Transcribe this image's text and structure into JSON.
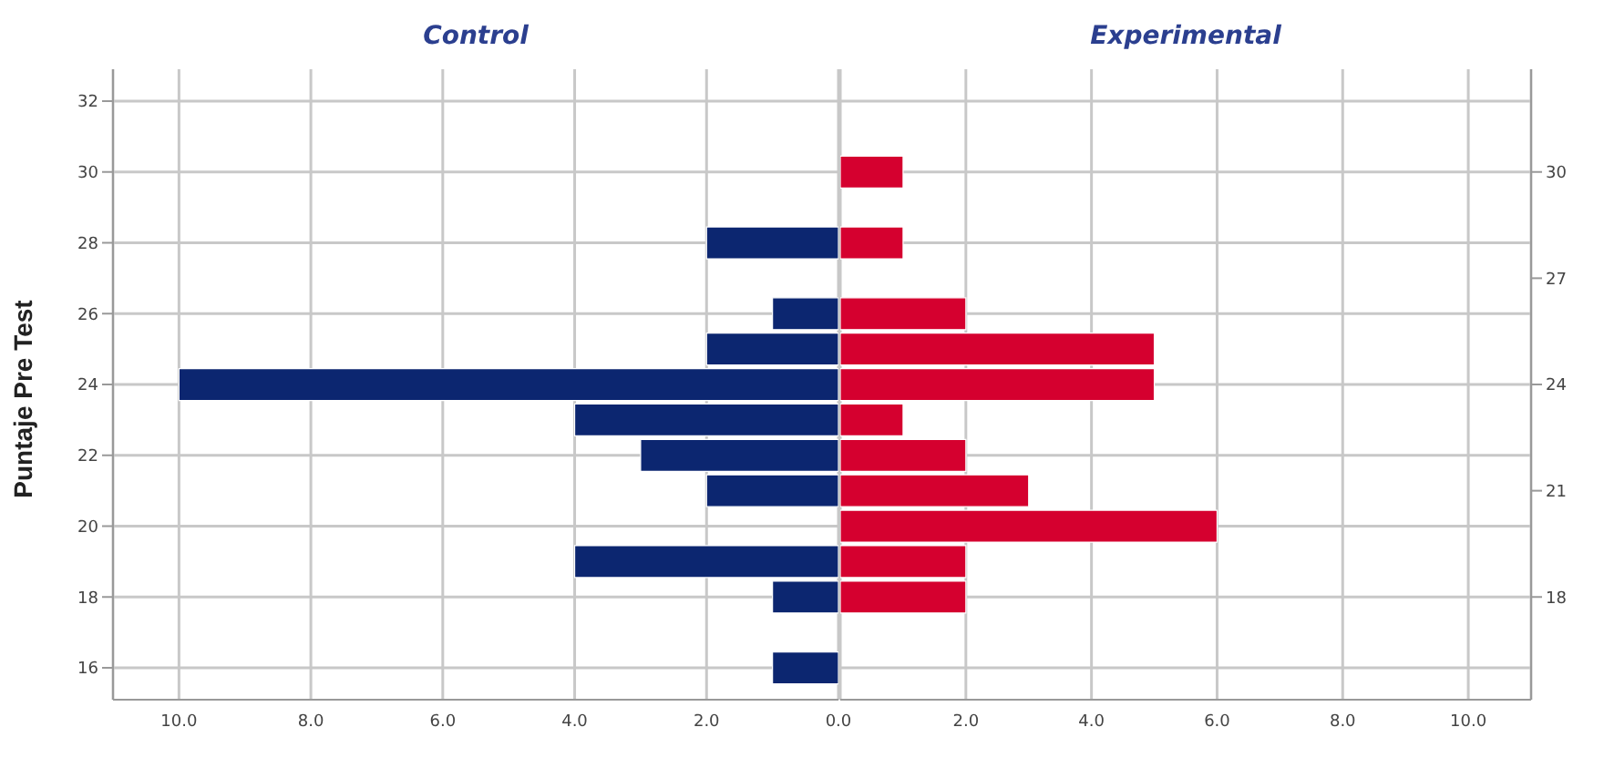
{
  "chart_data": [
    {
      "type": "histogram",
      "title": "Control",
      "ylabel": "Puntaje Pre Test",
      "orientation": "horizontal",
      "bins": [
        15.5,
        16.5,
        17.5,
        18.5,
        19.5,
        20.5,
        21.5,
        22.5,
        23.5,
        24.5,
        25.5,
        26.5,
        27.5,
        28.5
      ],
      "values": [
        1,
        0,
        1,
        4,
        0,
        2,
        3,
        4,
        10,
        2,
        1,
        0,
        2
      ],
      "color": "#0c2670",
      "xlim": [
        11,
        0
      ],
      "xticks": [
        {
          "value": 10,
          "label": "10.0"
        },
        {
          "value": 8,
          "label": "8.0"
        },
        {
          "value": 6,
          "label": "6.0"
        },
        {
          "value": 4,
          "label": "4.0"
        },
        {
          "value": 2,
          "label": "2.0"
        },
        {
          "value": 0,
          "label": "0.0"
        }
      ],
      "ylim": [
        15.1,
        32.9
      ],
      "yticks": [
        16,
        18,
        20,
        22,
        24,
        26,
        28,
        30,
        32
      ],
      "grid": true
    },
    {
      "type": "histogram",
      "title": "Experimental",
      "orientation": "horizontal",
      "bins": [
        17.5,
        18.5,
        19.5,
        20.5,
        21.5,
        22.5,
        23.5,
        24.5,
        25.5,
        26.5,
        27.5,
        28.5,
        29.5,
        30.5
      ],
      "values": [
        2,
        2,
        6,
        3,
        2,
        1,
        5,
        5,
        2,
        0,
        1,
        0,
        1
      ],
      "color": "#d5002f",
      "xlim": [
        0,
        11
      ],
      "xticks": [
        {
          "value": 0,
          "label": null
        },
        {
          "value": 2,
          "label": "2.0"
        },
        {
          "value": 4,
          "label": "4.0"
        },
        {
          "value": 6,
          "label": "6.0"
        },
        {
          "value": 8,
          "label": "8.0"
        },
        {
          "value": 10,
          "label": "10.0"
        }
      ],
      "ylim": [
        15.1,
        32.9
      ],
      "yticks": [
        18,
        21,
        24,
        27,
        30
      ],
      "grid": true
    }
  ]
}
